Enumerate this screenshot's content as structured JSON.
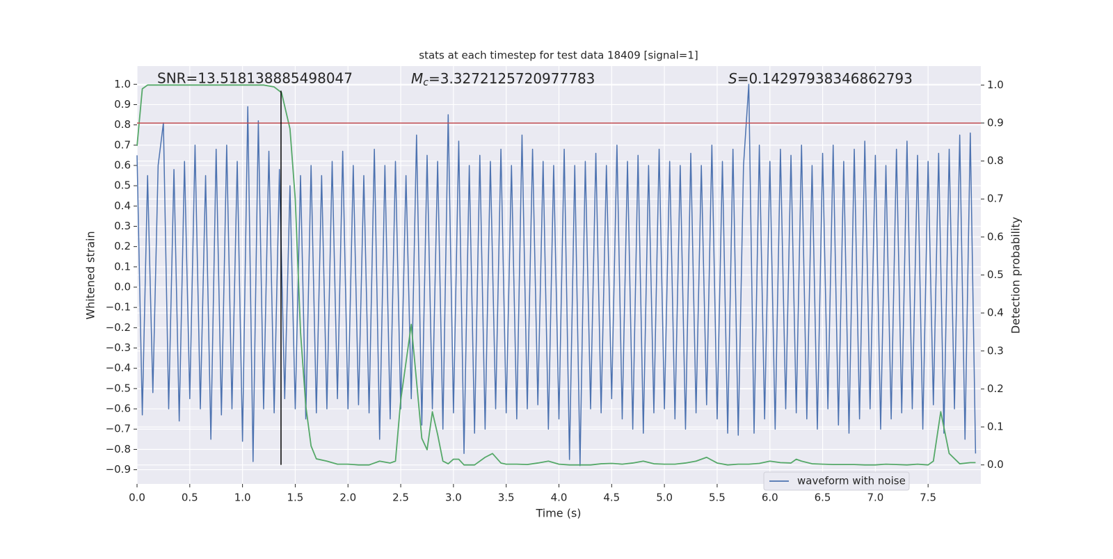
{
  "chart_data": {
    "type": "line",
    "title": "stats at each timestep for test data 18409 [signal=1]",
    "xlabel": "Time (s)",
    "ylabel": "Whitened strain",
    "y2label": "Detection probability",
    "annotations": [
      {
        "text": "SNR=13.518138885498047"
      },
      {
        "symbol": "M",
        "subscript": "c",
        "text": "=3.3272125720977783"
      },
      {
        "symbol": "S",
        "text": "=0.14297938346862793"
      }
    ],
    "xlim": [
      0,
      8
    ],
    "ylim": [
      -0.97,
      1.09
    ],
    "y2lim": [
      -0.05,
      1.05
    ],
    "xticks": [
      {
        "value": 0,
        "label": "0.0"
      },
      0.5,
      {
        "value": 1,
        "label": "1.0"
      },
      1.5,
      {
        "value": 2,
        "label": "2.0"
      },
      2.5,
      {
        "value": 3,
        "label": "3.0"
      },
      3.5,
      {
        "value": 4,
        "label": "4.0"
      },
      4.5,
      {
        "value": 5,
        "label": "5.0"
      },
      5.5,
      {
        "value": 6,
        "label": "6.0"
      },
      6.5,
      {
        "value": 7,
        "label": "7.0"
      },
      7.5
    ],
    "yticks": [
      {
        "value": -0.9,
        "label": "−0.9"
      },
      {
        "value": -0.8,
        "label": "−0.8"
      },
      {
        "value": -0.7,
        "label": "−0.7"
      },
      {
        "value": -0.6,
        "label": "−0.6"
      },
      {
        "value": -0.5,
        "label": "−0.5"
      },
      {
        "value": -0.4,
        "label": "−0.4"
      },
      {
        "value": -0.3,
        "label": "−0.3"
      },
      {
        "value": -0.2,
        "label": "−0.2"
      },
      {
        "value": -0.1,
        "label": "−0.1"
      },
      {
        "value": 0,
        "label": "0.0"
      },
      0.1,
      0.2,
      0.3,
      0.4,
      0.5,
      0.6,
      0.7,
      0.8,
      0.9,
      {
        "value": 1,
        "label": "1.0"
      }
    ],
    "y2ticks": [
      {
        "value": 0,
        "label": "0.0"
      },
      0.1,
      0.2,
      0.3,
      0.4,
      0.5,
      0.6,
      0.7,
      0.8,
      0.9,
      {
        "value": 1,
        "label": "1.0"
      }
    ],
    "grid": true,
    "legend": "lower right",
    "series": [
      {
        "name": "waveform with noise",
        "color": "#4c72b0",
        "x": [
          0,
          0.05,
          0.1,
          0.15,
          0.2,
          0.25,
          0.3,
          0.35,
          0.4,
          0.45,
          0.5,
          0.55,
          0.6,
          0.65,
          0.7,
          0.75,
          0.8,
          0.85,
          0.9,
          0.95,
          1,
          1.05,
          1.1,
          1.15,
          1.2,
          1.25,
          1.3,
          1.35,
          1.4,
          1.45,
          1.5,
          1.55,
          1.6,
          1.65,
          1.7,
          1.75,
          1.8,
          1.85,
          1.9,
          1.95,
          2,
          2.05,
          2.1,
          2.15,
          2.2,
          2.25,
          2.3,
          2.35,
          2.4,
          2.45,
          2.5,
          2.55,
          2.6,
          2.65,
          2.7,
          2.75,
          2.8,
          2.85,
          2.9,
          2.95,
          3,
          3.05,
          3.1,
          3.15,
          3.2,
          3.25,
          3.3,
          3.35,
          3.4,
          3.45,
          3.5,
          3.55,
          3.6,
          3.65,
          3.7,
          3.75,
          3.8,
          3.85,
          3.9,
          3.95,
          4,
          4.05,
          4.1,
          4.15,
          4.2,
          4.25,
          4.3,
          4.35,
          4.4,
          4.45,
          4.5,
          4.55,
          4.6,
          4.65,
          4.7,
          4.75,
          4.8,
          4.85,
          4.9,
          4.95,
          5,
          5.05,
          5.1,
          5.15,
          5.2,
          5.25,
          5.3,
          5.35,
          5.4,
          5.45,
          5.5,
          5.55,
          5.6,
          5.65,
          5.7,
          5.75,
          5.8,
          5.85,
          5.9,
          5.95,
          6,
          6.05,
          6.1,
          6.15,
          6.2,
          6.25,
          6.3,
          6.35,
          6.4,
          6.45,
          6.5,
          6.55,
          6.6,
          6.65,
          6.7,
          6.75,
          6.8,
          6.85,
          6.9,
          6.95,
          7,
          7.05,
          7.1,
          7.15,
          7.2,
          7.25,
          7.3,
          7.35,
          7.4,
          7.45,
          7.5,
          7.55,
          7.6,
          7.65,
          7.7,
          7.75,
          7.8,
          7.85,
          7.9,
          7.95
        ],
        "values": [
          0.65,
          -0.63,
          0.55,
          -0.52,
          0.6,
          0.81,
          -0.6,
          0.58,
          -0.66,
          0.62,
          -0.55,
          0.7,
          -0.6,
          0.55,
          -0.75,
          0.68,
          -0.63,
          0.7,
          -0.6,
          0.62,
          -0.76,
          0.89,
          -0.86,
          0.82,
          -0.6,
          0.67,
          -0.62,
          0.58,
          -0.55,
          0.5,
          -0.6,
          0.55,
          -0.65,
          0.6,
          -0.62,
          0.55,
          -0.6,
          0.62,
          -0.55,
          0.67,
          -0.6,
          0.6,
          -0.58,
          0.55,
          -0.62,
          0.68,
          -0.75,
          0.6,
          -0.65,
          0.62,
          -0.6,
          0.55,
          -0.55,
          0.75,
          -0.68,
          0.65,
          -0.6,
          0.62,
          -0.7,
          0.85,
          -0.62,
          0.72,
          -0.82,
          0.6,
          -0.72,
          0.65,
          -0.7,
          0.62,
          -0.6,
          0.68,
          -0.62,
          0.6,
          -0.65,
          0.75,
          -0.6,
          0.68,
          -0.58,
          0.62,
          -0.7,
          0.6,
          -0.65,
          0.68,
          -0.85,
          0.6,
          -0.88,
          0.62,
          -0.6,
          0.66,
          -0.62,
          0.6,
          -0.55,
          0.7,
          -0.65,
          0.62,
          -0.7,
          0.65,
          -0.72,
          0.6,
          -0.62,
          0.68,
          -0.6,
          0.62,
          -0.65,
          0.6,
          -0.7,
          0.66,
          -0.62,
          0.6,
          -0.58,
          0.7,
          -0.65,
          0.62,
          -0.72,
          0.68,
          -0.73,
          0.6,
          1.0,
          -0.72,
          0.7,
          -0.65,
          0.62,
          -0.7,
          0.68,
          -0.6,
          0.65,
          -0.62,
          0.7,
          -0.65,
          0.6,
          -0.7,
          0.66,
          -0.6,
          0.7,
          -0.68,
          0.62,
          -0.72,
          0.68,
          -0.65,
          0.72,
          -0.6,
          0.65,
          -0.7,
          0.6,
          -0.65,
          0.68,
          -0.62,
          0.72,
          -0.6,
          0.65,
          -0.7,
          0.62,
          -0.58,
          0.66,
          -0.72,
          0.68,
          -0.6,
          0.75,
          -0.75,
          0.76,
          -0.82
        ]
      },
      {
        "color": "#55a868",
        "axis": "y2",
        "x": [
          0,
          0.05,
          0.1,
          0.2,
          0.4,
          0.6,
          0.8,
          1,
          1.2,
          1.3,
          1.37,
          1.45,
          1.5,
          1.55,
          1.6,
          1.65,
          1.7,
          1.8,
          1.9,
          2,
          2.1,
          2.2,
          2.3,
          2.4,
          2.45,
          2.5,
          2.6,
          2.7,
          2.75,
          2.8,
          2.85,
          2.9,
          2.95,
          3,
          3.05,
          3.1,
          3.2,
          3.3,
          3.37,
          3.45,
          3.5,
          3.6,
          3.7,
          3.8,
          3.9,
          4,
          4.1,
          4.2,
          4.3,
          4.4,
          4.5,
          4.6,
          4.7,
          4.8,
          4.9,
          5,
          5.1,
          5.2,
          5.3,
          5.4,
          5.5,
          5.6,
          5.7,
          5.8,
          5.9,
          6,
          6.1,
          6.2,
          6.25,
          6.3,
          6.4,
          6.5,
          6.6,
          6.7,
          6.8,
          6.9,
          7,
          7.1,
          7.2,
          7.3,
          7.4,
          7.5,
          7.55,
          7.62,
          7.7,
          7.8,
          7.9,
          7.95
        ],
        "values": [
          0.84,
          0.99,
          1.0,
          1.0,
          1.0,
          1.0,
          1.0,
          1.0,
          1.0,
          0.995,
          0.98,
          0.885,
          0.7,
          0.35,
          0.155,
          0.05,
          0.016,
          0.01,
          0.002,
          0.002,
          0.0,
          0.0,
          0.01,
          0.005,
          0.01,
          0.17,
          0.37,
          0.07,
          0.04,
          0.14,
          0.08,
          0.01,
          0.003,
          0.015,
          0.015,
          0.0,
          0.0,
          0.02,
          0.03,
          0.005,
          0.002,
          0.002,
          0.001,
          0.005,
          0.01,
          0.002,
          0.0,
          0.0,
          0.0,
          0.003,
          0.004,
          0.002,
          0.005,
          0.01,
          0.003,
          0.002,
          0.002,
          0.005,
          0.01,
          0.02,
          0.005,
          0.0,
          0.002,
          0.002,
          0.004,
          0.01,
          0.006,
          0.005,
          0.015,
          0.01,
          0.003,
          0.002,
          0.001,
          0.001,
          0.001,
          0.0,
          0.0,
          0.002,
          0.001,
          0.0,
          0.002,
          0.0,
          0.01,
          0.14,
          0.03,
          0.003,
          0.006,
          0.006
        ]
      }
    ],
    "hlines": [
      {
        "y": 0.9,
        "axis": "y2",
        "color": "#c44e52"
      }
    ],
    "vlines": [
      {
        "x": 1.365,
        "y2range": [
          0,
          0.985
        ],
        "color": "#000000"
      }
    ]
  }
}
